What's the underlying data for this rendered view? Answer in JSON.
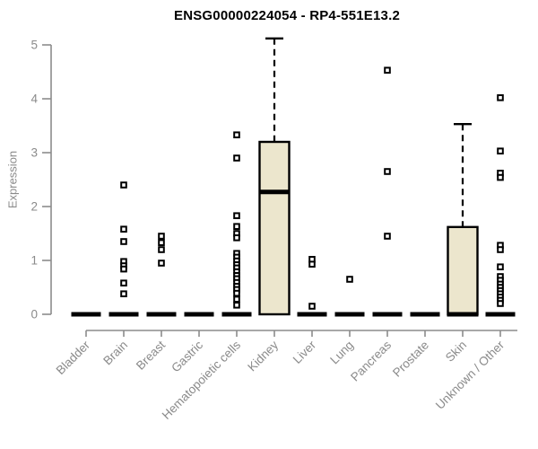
{
  "colors": {
    "box_fill": "#ece6cd",
    "box_stroke": "#000000",
    "median": "#000000",
    "whisker": "#000000",
    "outlier_stroke": "#000000",
    "outlier_fill": "#ffffff",
    "axis_line": "#8c8c8c",
    "axis_text": "#8a8a8a",
    "title_text": "#000000",
    "background": "#ffffff"
  },
  "chart_data": {
    "type": "boxplot",
    "title": "ENSG00000224054 - RP4-551E13.2",
    "xlabel": "",
    "ylabel": "Expression",
    "ylim": [
      0,
      5
    ],
    "yticks": [
      0,
      1,
      2,
      3,
      4,
      5
    ],
    "grid": "off",
    "legend": "none",
    "x_tick_label_rotation_deg": 45,
    "categories": [
      "Bladder",
      "Brain",
      "Breast",
      "Gastric",
      "Hematopoietic cells",
      "Kidney",
      "Liver",
      "Lung",
      "Pancreas",
      "Prostate",
      "Skin",
      "Unknown / Other"
    ],
    "boxes": [
      {
        "category": "Bladder",
        "q1": 0,
        "median": 0,
        "q3": 0,
        "whisker_low": 0,
        "whisker_high": 0,
        "outliers": []
      },
      {
        "category": "Brain",
        "q1": 0,
        "median": 0,
        "q3": 0,
        "whisker_low": 0,
        "whisker_high": 0,
        "outliers": [
          2.4,
          1.58,
          1.35,
          0.98,
          0.9,
          0.84,
          0.58,
          0.38
        ]
      },
      {
        "category": "Breast",
        "q1": 0,
        "median": 0,
        "q3": 0,
        "whisker_low": 0,
        "whisker_high": 0,
        "outliers": [
          1.45,
          1.33,
          1.2,
          0.95
        ]
      },
      {
        "category": "Gastric",
        "q1": 0,
        "median": 0,
        "q3": 0,
        "whisker_low": 0,
        "whisker_high": 0,
        "outliers": []
      },
      {
        "category": "Hematopoietic cells",
        "q1": 0,
        "median": 0,
        "q3": 0,
        "whisker_low": 0,
        "whisker_high": 0,
        "outliers": [
          3.33,
          2.9,
          1.83,
          1.63,
          1.5,
          1.42,
          1.13,
          1.06,
          0.99,
          0.92,
          0.86,
          0.79,
          0.72,
          0.66,
          0.59,
          0.52,
          0.46,
          0.39,
          0.28,
          0.17
        ]
      },
      {
        "category": "Kidney",
        "q1": 0,
        "median": 2.27,
        "q3": 3.2,
        "whisker_low": 0,
        "whisker_high": 5.12,
        "outliers": []
      },
      {
        "category": "Liver",
        "q1": 0,
        "median": 0,
        "q3": 0,
        "whisker_low": 0,
        "whisker_high": 0,
        "outliers": [
          1.02,
          0.93,
          0.15
        ]
      },
      {
        "category": "Lung",
        "q1": 0,
        "median": 0,
        "q3": 0,
        "whisker_low": 0,
        "whisker_high": 0,
        "outliers": [
          0.65
        ]
      },
      {
        "category": "Pancreas",
        "q1": 0,
        "median": 0,
        "q3": 0,
        "whisker_low": 0,
        "whisker_high": 0,
        "outliers": [
          4.53,
          2.65,
          1.45
        ]
      },
      {
        "category": "Prostate",
        "q1": 0,
        "median": 0,
        "q3": 0,
        "whisker_low": 0,
        "whisker_high": 0,
        "outliers": []
      },
      {
        "category": "Skin",
        "q1": 0,
        "median": 0,
        "q3": 1.62,
        "whisker_low": 0,
        "whisker_high": 3.53,
        "outliers": []
      },
      {
        "category": "Unknown / Other",
        "q1": 0,
        "median": 0,
        "q3": 0,
        "whisker_low": 0,
        "whisker_high": 0,
        "outliers": [
          4.02,
          3.03,
          2.62,
          2.54,
          1.28,
          1.2,
          0.88,
          0.7,
          0.63,
          0.56,
          0.5,
          0.44,
          0.38,
          0.32,
          0.26,
          0.2
        ]
      }
    ]
  }
}
